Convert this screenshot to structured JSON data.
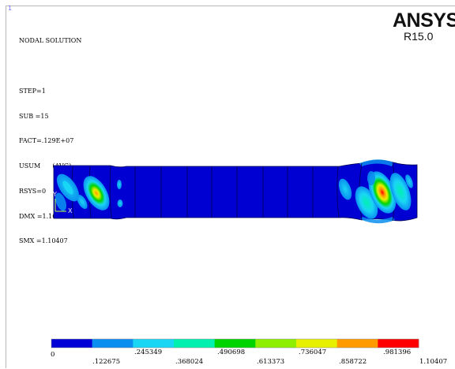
{
  "window_number": "1",
  "brand": {
    "name": "ANSYS",
    "release": "R15.0"
  },
  "info": {
    "lines": [
      "NODAL SOLUTION",
      "",
      "STEP=1",
      "SUB =15",
      "FACT=.129E+07",
      "USUM      (AVG)",
      "RSYS=0",
      "DMX =1.10407",
      "SMX =1.10407"
    ]
  },
  "triad": {
    "y_label": "Y",
    "x_label": "X"
  },
  "legend": {
    "colors": [
      "#0000d6",
      "#0a8ef0",
      "#1ad6f5",
      "#00f0b0",
      "#00d400",
      "#8ef000",
      "#e6f000",
      "#ff9a00",
      "#ff0000"
    ],
    "labels_top": [
      "0",
      ".245349",
      ".490698",
      ".736047",
      ".981396"
    ],
    "labels_bottom": [
      ".122675",
      ".368024",
      ".613373",
      ".858722",
      "1.10407"
    ]
  },
  "model": {
    "body_color": "#0000d2",
    "edge_color": "#000050"
  }
}
